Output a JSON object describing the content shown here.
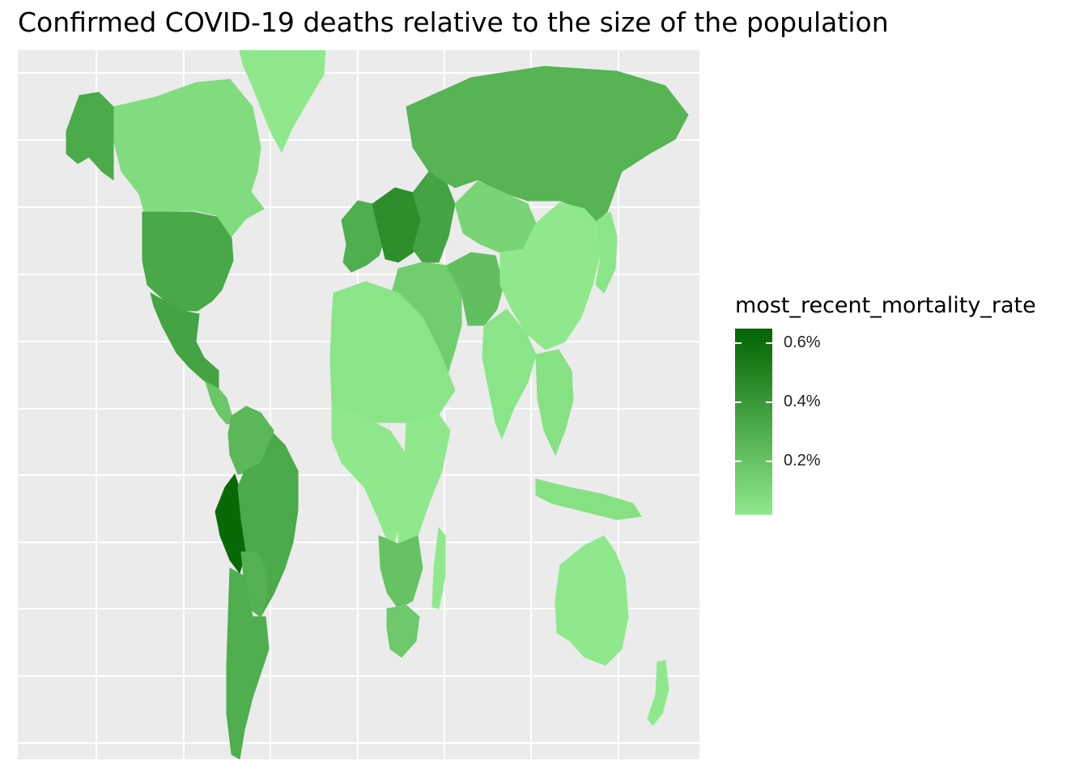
{
  "title": "Confirmed COVID-19 deaths relative to the size of the population",
  "legend": {
    "title": "most_recent_mortality_rate",
    "ticks": [
      {
        "value": 0.006,
        "label": "0.6%"
      },
      {
        "value": 0.004,
        "label": "0.4%"
      },
      {
        "value": 0.002,
        "label": "0.2%"
      }
    ],
    "range": [
      0.0002,
      0.0065
    ],
    "colors": {
      "low": "#8fe98c",
      "high": "#006400"
    }
  },
  "colors": {
    "panel_bg": "#ebebeb",
    "grid": "#ffffff",
    "ocean": "#ebebeb"
  },
  "map": {
    "projection": "Peters (equal-area)",
    "grid": true,
    "regions": [
      {
        "name": "Greenland",
        "rate": 0.0002
      },
      {
        "name": "Canada",
        "rate": 0.0008
      },
      {
        "name": "Alaska",
        "rate": 0.0032
      },
      {
        "name": "United States",
        "rate": 0.0033
      },
      {
        "name": "Mexico",
        "rate": 0.0035
      },
      {
        "name": "Central America",
        "rate": 0.0018
      },
      {
        "name": "Colombia / Venezuela",
        "rate": 0.0025
      },
      {
        "name": "Peru",
        "rate": 0.0062
      },
      {
        "name": "Brazil",
        "rate": 0.0032
      },
      {
        "name": "Bolivia / Paraguay",
        "rate": 0.0028
      },
      {
        "name": "Argentina / Chile",
        "rate": 0.003
      },
      {
        "name": "Western Europe",
        "rate": 0.003
      },
      {
        "name": "Central Europe",
        "rate": 0.0045
      },
      {
        "name": "Eastern Europe",
        "rate": 0.0035
      },
      {
        "name": "Russia",
        "rate": 0.0027
      },
      {
        "name": "Kazakhstan / Central Asia",
        "rate": 0.0012
      },
      {
        "name": "Middle East",
        "rate": 0.0015
      },
      {
        "name": "Iran",
        "rate": 0.0022
      },
      {
        "name": "China",
        "rate": 0.0002
      },
      {
        "name": "India",
        "rate": 0.0004
      },
      {
        "name": "Southeast Asia",
        "rate": 0.0006
      },
      {
        "name": "Japan",
        "rate": 0.0004
      },
      {
        "name": "Indonesia",
        "rate": 0.0006
      },
      {
        "name": "North Africa",
        "rate": 0.0004
      },
      {
        "name": "West / Central Africa",
        "rate": 0.0002
      },
      {
        "name": "East Africa",
        "rate": 0.0002
      },
      {
        "name": "Southern Africa",
        "rate": 0.002
      },
      {
        "name": "South Africa",
        "rate": 0.0017
      },
      {
        "name": "Madagascar",
        "rate": 0.0002
      },
      {
        "name": "Australia",
        "rate": 0.0002
      },
      {
        "name": "New Zealand",
        "rate": 0.0002
      }
    ]
  }
}
